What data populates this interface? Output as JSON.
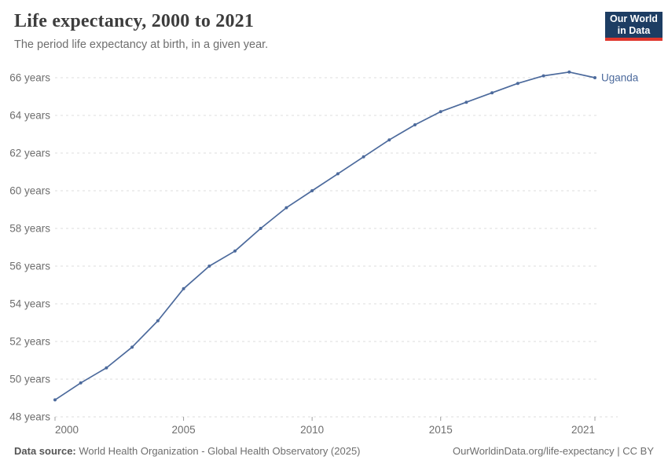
{
  "header": {
    "title": "Life expectancy, 2000 to 2021",
    "subtitle": "The period life expectancy at birth, in a given year.",
    "logo": {
      "line1": "Our World",
      "line2": "in Data",
      "bg_color": "#1d3d63",
      "accent_color": "#e0362c"
    }
  },
  "chart_data": {
    "type": "line",
    "title": "Life expectancy, 2000 to 2021",
    "x": [
      2000,
      2001,
      2002,
      2003,
      2004,
      2005,
      2006,
      2007,
      2008,
      2009,
      2010,
      2011,
      2012,
      2013,
      2014,
      2015,
      2016,
      2017,
      2018,
      2019,
      2020,
      2021
    ],
    "series": [
      {
        "name": "Uganda",
        "color": "#4c6a9c",
        "values": [
          48.9,
          49.8,
          50.6,
          51.7,
          53.1,
          54.8,
          56.0,
          56.8,
          58.0,
          59.1,
          60.0,
          60.9,
          61.8,
          62.7,
          63.5,
          64.2,
          64.7,
          65.2,
          65.7,
          66.1,
          66.3,
          66.0
        ]
      }
    ],
    "xlabel": "",
    "ylabel": "",
    "ylim": [
      48,
      66
    ],
    "yticks": [
      48,
      50,
      52,
      54,
      56,
      58,
      60,
      62,
      64,
      66
    ],
    "ytick_suffix": " years",
    "xticks": [
      2000,
      2005,
      2010,
      2015,
      2021
    ],
    "grid": "horizontal-dashed",
    "grid_color": "#dddddd",
    "axis_text_color": "#6e6e6e",
    "tick_color": "#a0a0a0",
    "legend": "entity-label-right"
  },
  "footer": {
    "datasource_label": "Data source:",
    "datasource_text": " World Health Organization - Global Health Observatory (2025)",
    "link": "OurWorldinData.org/life-expectancy | CC BY"
  }
}
